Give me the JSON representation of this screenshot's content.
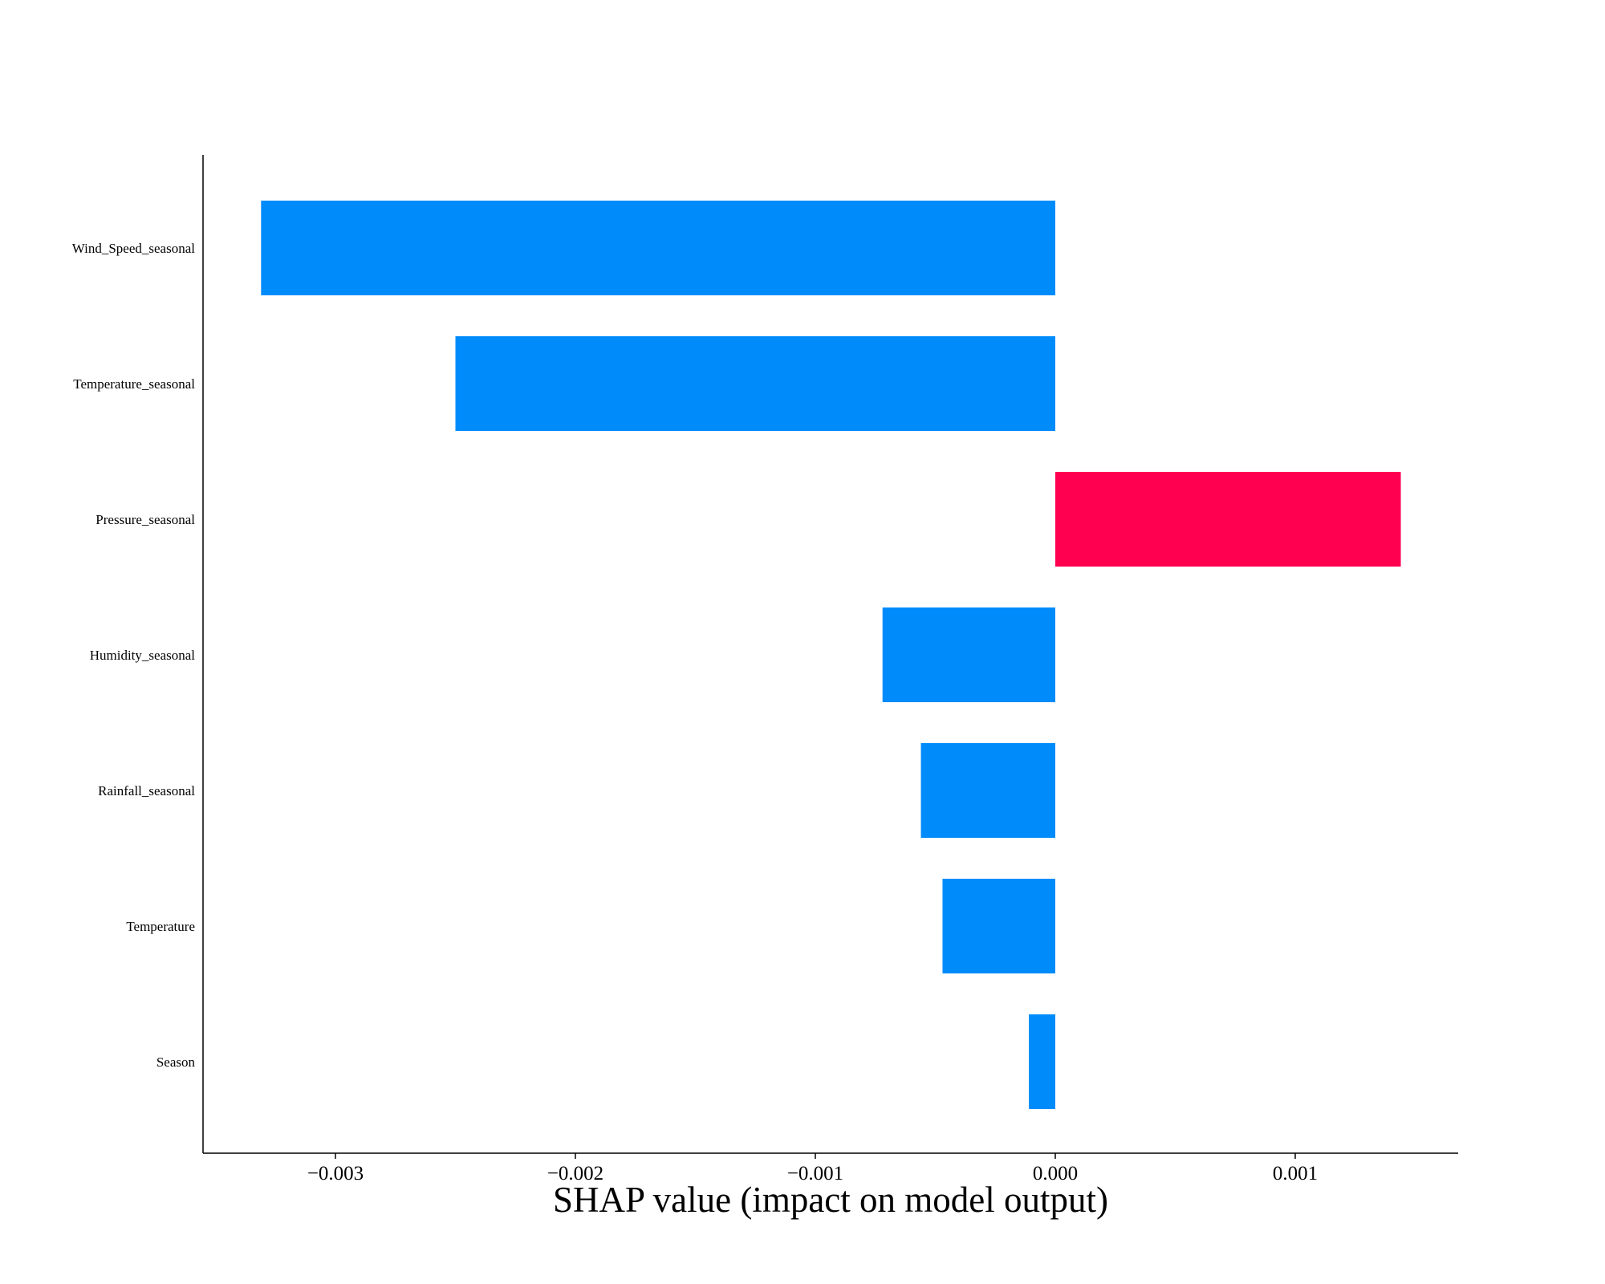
{
  "chart_data": {
    "type": "bar",
    "orientation": "horizontal",
    "title": "",
    "xlabel": "SHAP value (impact on model output)",
    "ylabel": "",
    "categories": [
      "Wind_Speed_seasonal",
      "Temperature_seasonal",
      "Pressure_seasonal",
      "Humidity_seasonal",
      "Rainfall_seasonal",
      "Temperature",
      "Season"
    ],
    "values": [
      -0.00331,
      -0.0025,
      0.00144,
      -0.00072,
      -0.00056,
      -0.00047,
      -0.00011
    ],
    "x_ticks": [
      -0.003,
      -0.002,
      -0.001,
      0.0,
      0.001
    ],
    "x_tick_labels": [
      "−0.003",
      "−0.002",
      "−0.001",
      "0.000",
      "0.001"
    ],
    "xlim": [
      -0.00355,
      0.00167
    ],
    "grid": false,
    "colors": {
      "positive": "#ff0051",
      "negative": "#008bfb",
      "axis": "#000000"
    }
  }
}
